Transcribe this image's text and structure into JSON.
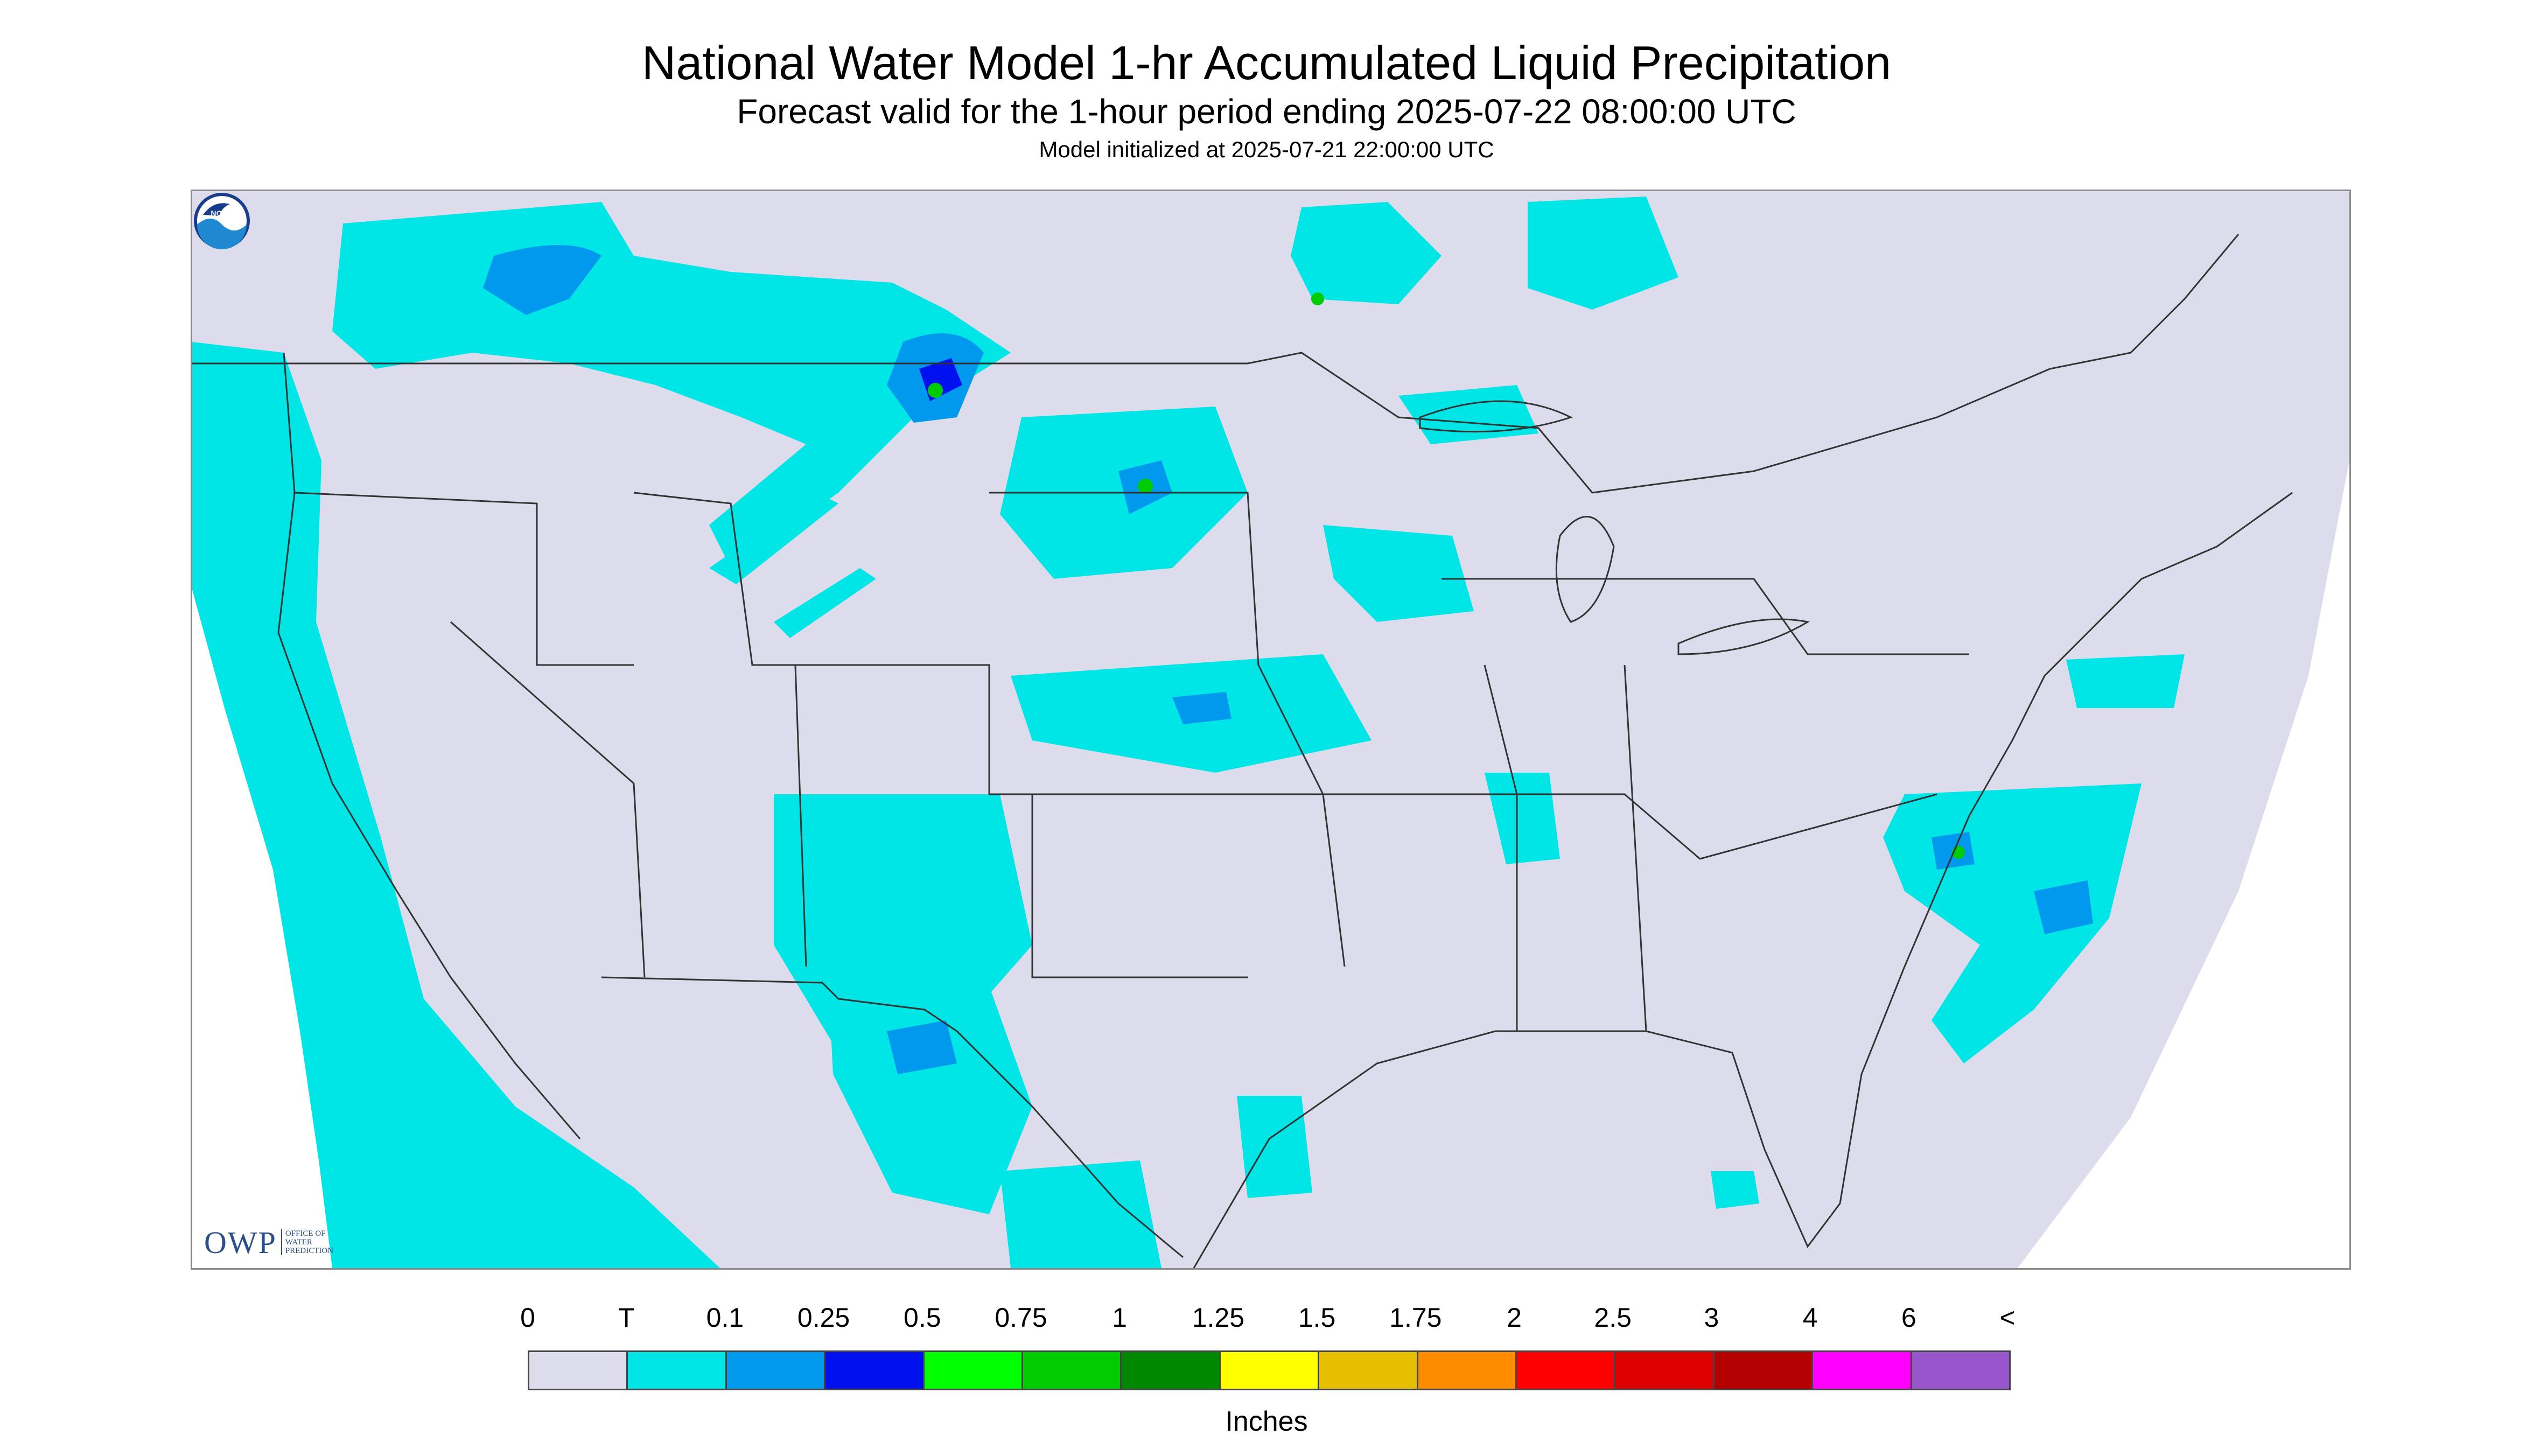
{
  "header": {
    "title": "National Water Model 1-hr Accumulated Liquid Precipitation",
    "subtitle": "Forecast valid for the 1-hour period ending 2025-07-22 08:00:00 UTC",
    "init_line": "Model initialized at 2025-07-21 22:00:00 UTC"
  },
  "map": {
    "region": "Contiguous United States",
    "background_color": "#dcdcec",
    "outside_domain_color": "#ffffff",
    "light_precip_color": "#00e5e5",
    "moderate_precip_color": "#0099ee",
    "heavy_precip_color": "#0010ee",
    "very_heavy_precip_color": "#00cc00",
    "boundary_line_color": "#333333"
  },
  "logos": {
    "owp_mark": "OWP",
    "owp_line1": "OFFICE OF",
    "owp_line2": "WATER",
    "owp_line3": "PREDICTION",
    "noaa_text": "NOAA",
    "noaa_icon": "noaa-logo-icon"
  },
  "legend": {
    "ticks": [
      "0",
      "T",
      "0.1",
      "0.25",
      "0.5",
      "0.75",
      "1",
      "1.25",
      "1.5",
      "1.75",
      "2",
      "2.5",
      "3",
      "4",
      "6",
      "<"
    ],
    "colors": [
      "#dcdcec",
      "#00e5e5",
      "#0099ee",
      "#0010ee",
      "#00ff00",
      "#00cc00",
      "#008800",
      "#ffff00",
      "#e6c000",
      "#ff8c00",
      "#ff0000",
      "#dd0000",
      "#b40000",
      "#ff00ff",
      "#9955cc"
    ],
    "units": "Inches"
  }
}
